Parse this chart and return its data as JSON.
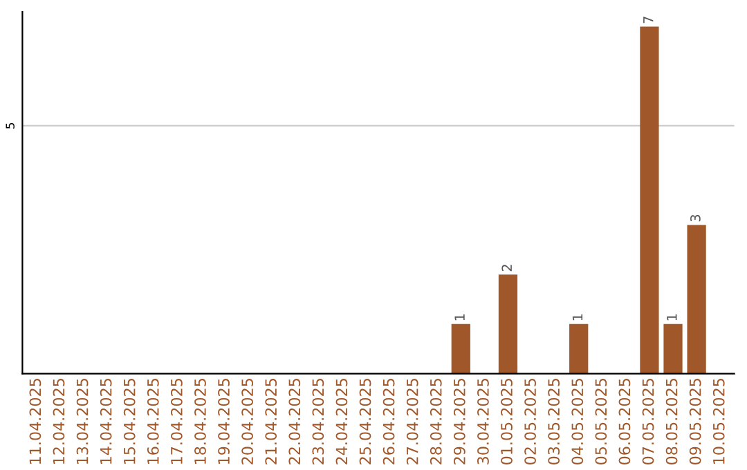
{
  "chart_data": {
    "type": "bar",
    "categories": [
      "11.04.2025",
      "12.04.2025",
      "13.04.2025",
      "14.04.2025",
      "15.04.2025",
      "16.04.2025",
      "17.04.2025",
      "18.04.2025",
      "19.04.2025",
      "20.04.2025",
      "21.04.2025",
      "22.04.2025",
      "23.04.2025",
      "24.04.2025",
      "25.04.2025",
      "26.04.2025",
      "27.04.2025",
      "28.04.2025",
      "29.04.2025",
      "30.04.2025",
      "01.05.2025",
      "02.05.2025",
      "03.05.2025",
      "04.05.2025",
      "05.05.2025",
      "06.05.2025",
      "07.05.2025",
      "08.05.2025",
      "09.05.2025",
      "10.05.2025"
    ],
    "values": [
      null,
      null,
      null,
      null,
      null,
      null,
      null,
      null,
      null,
      null,
      null,
      null,
      null,
      null,
      null,
      null,
      null,
      null,
      1,
      null,
      2,
      null,
      null,
      1,
      null,
      null,
      7,
      1,
      3,
      null
    ],
    "value_labels": [
      null,
      null,
      null,
      null,
      null,
      null,
      null,
      null,
      null,
      null,
      null,
      null,
      null,
      null,
      null,
      null,
      null,
      null,
      "1",
      null,
      "2",
      null,
      null,
      "1",
      null,
      null,
      "7",
      "1",
      "3",
      null
    ],
    "color": "#a0582a",
    "ylim": [
      0,
      7.3
    ],
    "ref_lines": [
      {
        "axis": "y",
        "value": 5,
        "label": "5",
        "color": "#cccccc"
      }
    ]
  }
}
